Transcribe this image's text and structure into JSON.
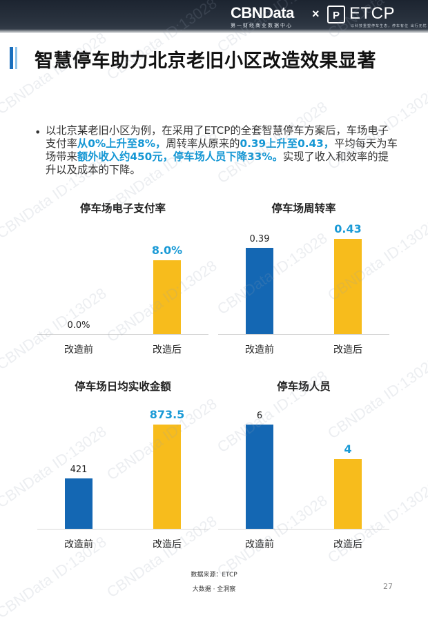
{
  "header": {
    "brand": "CBNData",
    "brand_sub": "第一财经商业数据中心",
    "times": "×",
    "logo_mark": "P",
    "partner": "ETCP",
    "partner_sub": "以科技重塑停车生态，停车有位 出行无忧"
  },
  "page_title": "智慧停车助力北京老旧小区改造效果显著",
  "bullet": "•",
  "paragraph": [
    {
      "t": "以北京某老旧小区为例，在采用了ETCP的全套智慧停车方案后，车场电子支付率",
      "hl": false
    },
    {
      "t": "从0%上升至8%，",
      "hl": true
    },
    {
      "t": "周转率从原来的",
      "hl": false
    },
    {
      "t": "0.39上升至0.43，",
      "hl": true
    },
    {
      "t": "平均每天为车场带来",
      "hl": false
    },
    {
      "t": "额外收入约450元，停车场人员下降33%。",
      "hl": true
    },
    {
      "t": "实现了收入和效率的提升以及成本的下降。",
      "hl": false
    }
  ],
  "chart_data": [
    {
      "type": "bar",
      "title": "停车场电子支付率",
      "categories": [
        "改造前",
        "改造后"
      ],
      "values": [
        0,
        8.0
      ],
      "value_labels": [
        "0.0%",
        "8.0%"
      ],
      "highlight": [
        false,
        true
      ],
      "ylim": [
        0,
        8.5
      ]
    },
    {
      "type": "bar",
      "title": "停车场周转率",
      "categories": [
        "改造前",
        "改造后"
      ],
      "values": [
        0.39,
        0.43
      ],
      "value_labels": [
        "0.39",
        "0.43"
      ],
      "highlight": [
        false,
        true
      ],
      "ylim": [
        0,
        0.45
      ]
    },
    {
      "type": "bar",
      "title": "停车场日均实收金额",
      "categories": [
        "改造前",
        "改造后"
      ],
      "values": [
        421,
        873.5
      ],
      "value_labels": [
        "421",
        "873.5"
      ],
      "highlight": [
        false,
        true
      ],
      "ylim": [
        0,
        920
      ]
    },
    {
      "type": "bar",
      "title": "停车场人员",
      "categories": [
        "改造前",
        "改造后"
      ],
      "values": [
        6,
        4
      ],
      "value_labels": [
        "6",
        "4"
      ],
      "highlight": [
        false,
        true
      ],
      "ylim": [
        0,
        6.3
      ]
    }
  ],
  "colors": {
    "before": "#1467b3",
    "after": "#f7bc1c",
    "highlight_text": "#1a9ad6",
    "title_accent": "#1a6fbd"
  },
  "source": "数据来源：ETCP",
  "footer": "大数据 · 全洞察",
  "page_number": "27",
  "watermark": "CBNData ID:13028"
}
